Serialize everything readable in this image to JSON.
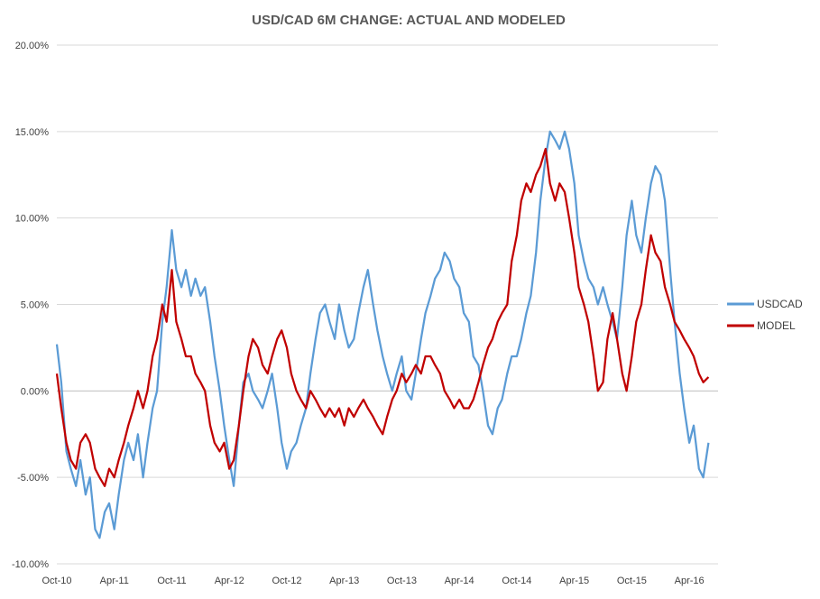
{
  "chart_data": {
    "type": "line",
    "title": "USD/CAD 6M CHANGE: ACTUAL AND MODELED",
    "xlabel": "",
    "ylabel": "",
    "ylim": [
      -0.1,
      0.2
    ],
    "y_ticks": [
      -0.1,
      -0.05,
      0.0,
      0.05,
      0.1,
      0.15,
      0.2
    ],
    "y_tick_labels": [
      "-10.00%",
      "-5.00%",
      "0.00%",
      "5.00%",
      "10.00%",
      "15.00%",
      "20.00%"
    ],
    "x_range": [
      "2010-10",
      "2016-07"
    ],
    "x_ticks": [
      "2010-10",
      "2011-04",
      "2011-10",
      "2012-04",
      "2012-10",
      "2013-04",
      "2013-10",
      "2014-04",
      "2014-10",
      "2015-04",
      "2015-10",
      "2016-04"
    ],
    "x_tick_labels": [
      "Oct-10",
      "Apr-11",
      "Oct-11",
      "Apr-12",
      "Oct-12",
      "Apr-13",
      "Oct-13",
      "Apr-14",
      "Oct-14",
      "Apr-15",
      "Oct-15",
      "Apr-16"
    ],
    "grid": "horizontal",
    "legend_position": "right",
    "series": [
      {
        "name": "USDCAD",
        "color": "#5b9bd5",
        "points": [
          [
            "2010-10-01",
            0.027
          ],
          [
            "2010-10-15",
            0.005
          ],
          [
            "2010-11-01",
            -0.035
          ],
          [
            "2010-11-15",
            -0.045
          ],
          [
            "2010-12-01",
            -0.055
          ],
          [
            "2010-12-15",
            -0.04
          ],
          [
            "2011-01-01",
            -0.06
          ],
          [
            "2011-01-15",
            -0.05
          ],
          [
            "2011-02-01",
            -0.08
          ],
          [
            "2011-02-15",
            -0.085
          ],
          [
            "2011-03-01",
            -0.07
          ],
          [
            "2011-03-15",
            -0.065
          ],
          [
            "2011-04-01",
            -0.08
          ],
          [
            "2011-04-15",
            -0.06
          ],
          [
            "2011-05-01",
            -0.04
          ],
          [
            "2011-05-15",
            -0.03
          ],
          [
            "2011-06-01",
            -0.04
          ],
          [
            "2011-06-15",
            -0.025
          ],
          [
            "2011-07-01",
            -0.05
          ],
          [
            "2011-07-15",
            -0.03
          ],
          [
            "2011-08-01",
            -0.01
          ],
          [
            "2011-08-15",
            0.0
          ],
          [
            "2011-09-01",
            0.04
          ],
          [
            "2011-09-15",
            0.06
          ],
          [
            "2011-10-01",
            0.093
          ],
          [
            "2011-10-15",
            0.07
          ],
          [
            "2011-11-01",
            0.06
          ],
          [
            "2011-11-15",
            0.07
          ],
          [
            "2011-12-01",
            0.055
          ],
          [
            "2011-12-15",
            0.065
          ],
          [
            "2012-01-01",
            0.055
          ],
          [
            "2012-01-15",
            0.06
          ],
          [
            "2012-02-01",
            0.04
          ],
          [
            "2012-02-15",
            0.02
          ],
          [
            "2012-03-01",
            0.0
          ],
          [
            "2012-03-15",
            -0.02
          ],
          [
            "2012-04-01",
            -0.04
          ],
          [
            "2012-04-15",
            -0.055
          ],
          [
            "2012-05-01",
            -0.02
          ],
          [
            "2012-05-15",
            0.005
          ],
          [
            "2012-06-01",
            0.01
          ],
          [
            "2012-06-15",
            0.0
          ],
          [
            "2012-07-01",
            -0.005
          ],
          [
            "2012-07-15",
            -0.01
          ],
          [
            "2012-08-01",
            0.0
          ],
          [
            "2012-08-15",
            0.01
          ],
          [
            "2012-09-01",
            -0.01
          ],
          [
            "2012-09-15",
            -0.03
          ],
          [
            "2012-10-01",
            -0.045
          ],
          [
            "2012-10-15",
            -0.035
          ],
          [
            "2012-11-01",
            -0.03
          ],
          [
            "2012-11-15",
            -0.02
          ],
          [
            "2012-12-01",
            -0.01
          ],
          [
            "2012-12-15",
            0.01
          ],
          [
            "2013-01-01",
            0.03
          ],
          [
            "2013-01-15",
            0.045
          ],
          [
            "2013-02-01",
            0.05
          ],
          [
            "2013-02-15",
            0.04
          ],
          [
            "2013-03-01",
            0.03
          ],
          [
            "2013-03-15",
            0.05
          ],
          [
            "2013-04-01",
            0.035
          ],
          [
            "2013-04-15",
            0.025
          ],
          [
            "2013-05-01",
            0.03
          ],
          [
            "2013-05-15",
            0.045
          ],
          [
            "2013-06-01",
            0.06
          ],
          [
            "2013-06-15",
            0.07
          ],
          [
            "2013-07-01",
            0.05
          ],
          [
            "2013-07-15",
            0.035
          ],
          [
            "2013-08-01",
            0.02
          ],
          [
            "2013-08-15",
            0.01
          ],
          [
            "2013-09-01",
            0.0
          ],
          [
            "2013-09-15",
            0.01
          ],
          [
            "2013-10-01",
            0.02
          ],
          [
            "2013-10-15",
            0.0
          ],
          [
            "2013-11-01",
            -0.005
          ],
          [
            "2013-11-15",
            0.01
          ],
          [
            "2013-12-01",
            0.03
          ],
          [
            "2013-12-15",
            0.045
          ],
          [
            "2014-01-01",
            0.055
          ],
          [
            "2014-01-15",
            0.065
          ],
          [
            "2014-02-01",
            0.07
          ],
          [
            "2014-02-15",
            0.08
          ],
          [
            "2014-03-01",
            0.075
          ],
          [
            "2014-03-15",
            0.065
          ],
          [
            "2014-04-01",
            0.06
          ],
          [
            "2014-04-15",
            0.045
          ],
          [
            "2014-05-01",
            0.04
          ],
          [
            "2014-05-15",
            0.02
          ],
          [
            "2014-06-01",
            0.015
          ],
          [
            "2014-06-15",
            0.0
          ],
          [
            "2014-07-01",
            -0.02
          ],
          [
            "2014-07-15",
            -0.025
          ],
          [
            "2014-08-01",
            -0.01
          ],
          [
            "2014-08-15",
            -0.005
          ],
          [
            "2014-09-01",
            0.01
          ],
          [
            "2014-09-15",
            0.02
          ],
          [
            "2014-10-01",
            0.02
          ],
          [
            "2014-10-15",
            0.03
          ],
          [
            "2014-11-01",
            0.045
          ],
          [
            "2014-11-15",
            0.055
          ],
          [
            "2014-12-01",
            0.08
          ],
          [
            "2014-12-15",
            0.11
          ],
          [
            "2015-01-01",
            0.135
          ],
          [
            "2015-01-15",
            0.15
          ],
          [
            "2015-02-01",
            0.145
          ],
          [
            "2015-02-15",
            0.14
          ],
          [
            "2015-03-01",
            0.15
          ],
          [
            "2015-03-15",
            0.14
          ],
          [
            "2015-04-01",
            0.12
          ],
          [
            "2015-04-15",
            0.09
          ],
          [
            "2015-05-01",
            0.075
          ],
          [
            "2015-05-15",
            0.065
          ],
          [
            "2015-06-01",
            0.06
          ],
          [
            "2015-06-15",
            0.05
          ],
          [
            "2015-07-01",
            0.06
          ],
          [
            "2015-07-15",
            0.05
          ],
          [
            "2015-08-01",
            0.04
          ],
          [
            "2015-08-15",
            0.03
          ],
          [
            "2015-09-01",
            0.06
          ],
          [
            "2015-09-15",
            0.09
          ],
          [
            "2015-10-01",
            0.11
          ],
          [
            "2015-10-15",
            0.09
          ],
          [
            "2015-11-01",
            0.08
          ],
          [
            "2015-11-15",
            0.1
          ],
          [
            "2015-12-01",
            0.12
          ],
          [
            "2015-12-15",
            0.13
          ],
          [
            "2016-01-01",
            0.125
          ],
          [
            "2016-01-15",
            0.11
          ],
          [
            "2016-02-01",
            0.07
          ],
          [
            "2016-02-15",
            0.04
          ],
          [
            "2016-03-01",
            0.01
          ],
          [
            "2016-03-15",
            -0.01
          ],
          [
            "2016-04-01",
            -0.03
          ],
          [
            "2016-04-15",
            -0.02
          ],
          [
            "2016-05-01",
            -0.045
          ],
          [
            "2016-05-15",
            -0.05
          ],
          [
            "2016-06-01",
            -0.03
          ]
        ]
      },
      {
        "name": "MODEL",
        "color": "#c00000",
        "points": [
          [
            "2010-10-01",
            0.01
          ],
          [
            "2010-10-15",
            -0.01
          ],
          [
            "2010-11-01",
            -0.03
          ],
          [
            "2010-11-15",
            -0.04
          ],
          [
            "2010-12-01",
            -0.045
          ],
          [
            "2010-12-15",
            -0.03
          ],
          [
            "2011-01-01",
            -0.025
          ],
          [
            "2011-01-15",
            -0.03
          ],
          [
            "2011-02-01",
            -0.045
          ],
          [
            "2011-02-15",
            -0.05
          ],
          [
            "2011-03-01",
            -0.055
          ],
          [
            "2011-03-15",
            -0.045
          ],
          [
            "2011-04-01",
            -0.05
          ],
          [
            "2011-04-15",
            -0.04
          ],
          [
            "2011-05-01",
            -0.03
          ],
          [
            "2011-05-15",
            -0.02
          ],
          [
            "2011-06-01",
            -0.01
          ],
          [
            "2011-06-15",
            0.0
          ],
          [
            "2011-07-01",
            -0.01
          ],
          [
            "2011-07-15",
            0.0
          ],
          [
            "2011-08-01",
            0.02
          ],
          [
            "2011-08-15",
            0.03
          ],
          [
            "2011-09-01",
            0.05
          ],
          [
            "2011-09-15",
            0.04
          ],
          [
            "2011-10-01",
            0.07
          ],
          [
            "2011-10-15",
            0.04
          ],
          [
            "2011-11-01",
            0.03
          ],
          [
            "2011-11-15",
            0.02
          ],
          [
            "2011-12-01",
            0.02
          ],
          [
            "2011-12-15",
            0.01
          ],
          [
            "2012-01-01",
            0.005
          ],
          [
            "2012-01-15",
            0.0
          ],
          [
            "2012-02-01",
            -0.02
          ],
          [
            "2012-02-15",
            -0.03
          ],
          [
            "2012-03-01",
            -0.035
          ],
          [
            "2012-03-15",
            -0.03
          ],
          [
            "2012-04-01",
            -0.045
          ],
          [
            "2012-04-15",
            -0.04
          ],
          [
            "2012-05-01",
            -0.02
          ],
          [
            "2012-05-15",
            0.0
          ],
          [
            "2012-06-01",
            0.02
          ],
          [
            "2012-06-15",
            0.03
          ],
          [
            "2012-07-01",
            0.025
          ],
          [
            "2012-07-15",
            0.015
          ],
          [
            "2012-08-01",
            0.01
          ],
          [
            "2012-08-15",
            0.02
          ],
          [
            "2012-09-01",
            0.03
          ],
          [
            "2012-09-15",
            0.035
          ],
          [
            "2012-10-01",
            0.025
          ],
          [
            "2012-10-15",
            0.01
          ],
          [
            "2012-11-01",
            0.0
          ],
          [
            "2012-11-15",
            -0.005
          ],
          [
            "2012-12-01",
            -0.01
          ],
          [
            "2012-12-15",
            0.0
          ],
          [
            "2013-01-01",
            -0.005
          ],
          [
            "2013-01-15",
            -0.01
          ],
          [
            "2013-02-01",
            -0.015
          ],
          [
            "2013-02-15",
            -0.01
          ],
          [
            "2013-03-01",
            -0.015
          ],
          [
            "2013-03-15",
            -0.01
          ],
          [
            "2013-04-01",
            -0.02
          ],
          [
            "2013-04-15",
            -0.01
          ],
          [
            "2013-05-01",
            -0.015
          ],
          [
            "2013-05-15",
            -0.01
          ],
          [
            "2013-06-01",
            -0.005
          ],
          [
            "2013-06-15",
            -0.01
          ],
          [
            "2013-07-01",
            -0.015
          ],
          [
            "2013-07-15",
            -0.02
          ],
          [
            "2013-08-01",
            -0.025
          ],
          [
            "2013-08-15",
            -0.015
          ],
          [
            "2013-09-01",
            -0.005
          ],
          [
            "2013-09-15",
            0.0
          ],
          [
            "2013-10-01",
            0.01
          ],
          [
            "2013-10-15",
            0.005
          ],
          [
            "2013-11-01",
            0.01
          ],
          [
            "2013-11-15",
            0.015
          ],
          [
            "2013-12-01",
            0.01
          ],
          [
            "2013-12-15",
            0.02
          ],
          [
            "2014-01-01",
            0.02
          ],
          [
            "2014-01-15",
            0.015
          ],
          [
            "2014-02-01",
            0.01
          ],
          [
            "2014-02-15",
            0.0
          ],
          [
            "2014-03-01",
            -0.005
          ],
          [
            "2014-03-15",
            -0.01
          ],
          [
            "2014-04-01",
            -0.005
          ],
          [
            "2014-04-15",
            -0.01
          ],
          [
            "2014-05-01",
            -0.01
          ],
          [
            "2014-05-15",
            -0.005
          ],
          [
            "2014-06-01",
            0.005
          ],
          [
            "2014-06-15",
            0.015
          ],
          [
            "2014-07-01",
            0.025
          ],
          [
            "2014-07-15",
            0.03
          ],
          [
            "2014-08-01",
            0.04
          ],
          [
            "2014-08-15",
            0.045
          ],
          [
            "2014-09-01",
            0.05
          ],
          [
            "2014-09-15",
            0.075
          ],
          [
            "2014-10-01",
            0.09
          ],
          [
            "2014-10-15",
            0.11
          ],
          [
            "2014-11-01",
            0.12
          ],
          [
            "2014-11-15",
            0.115
          ],
          [
            "2014-12-01",
            0.125
          ],
          [
            "2014-12-15",
            0.13
          ],
          [
            "2015-01-01",
            0.14
          ],
          [
            "2015-01-15",
            0.12
          ],
          [
            "2015-02-01",
            0.11
          ],
          [
            "2015-02-15",
            0.12
          ],
          [
            "2015-03-01",
            0.115
          ],
          [
            "2015-03-15",
            0.1
          ],
          [
            "2015-04-01",
            0.08
          ],
          [
            "2015-04-15",
            0.06
          ],
          [
            "2015-05-01",
            0.05
          ],
          [
            "2015-05-15",
            0.04
          ],
          [
            "2015-06-01",
            0.02
          ],
          [
            "2015-06-15",
            0.0
          ],
          [
            "2015-07-01",
            0.005
          ],
          [
            "2015-07-15",
            0.03
          ],
          [
            "2015-08-01",
            0.045
          ],
          [
            "2015-08-15",
            0.03
          ],
          [
            "2015-09-01",
            0.01
          ],
          [
            "2015-09-15",
            0.0
          ],
          [
            "2015-10-01",
            0.02
          ],
          [
            "2015-10-15",
            0.04
          ],
          [
            "2015-11-01",
            0.05
          ],
          [
            "2015-11-15",
            0.07
          ],
          [
            "2015-12-01",
            0.09
          ],
          [
            "2015-12-15",
            0.08
          ],
          [
            "2016-01-01",
            0.075
          ],
          [
            "2016-01-15",
            0.06
          ],
          [
            "2016-02-01",
            0.05
          ],
          [
            "2016-02-15",
            0.04
          ],
          [
            "2016-03-01",
            0.035
          ],
          [
            "2016-03-15",
            0.03
          ],
          [
            "2016-04-01",
            0.025
          ],
          [
            "2016-04-15",
            0.02
          ],
          [
            "2016-05-01",
            0.01
          ],
          [
            "2016-05-15",
            0.005
          ],
          [
            "2016-06-01",
            0.008
          ]
        ]
      }
    ]
  }
}
